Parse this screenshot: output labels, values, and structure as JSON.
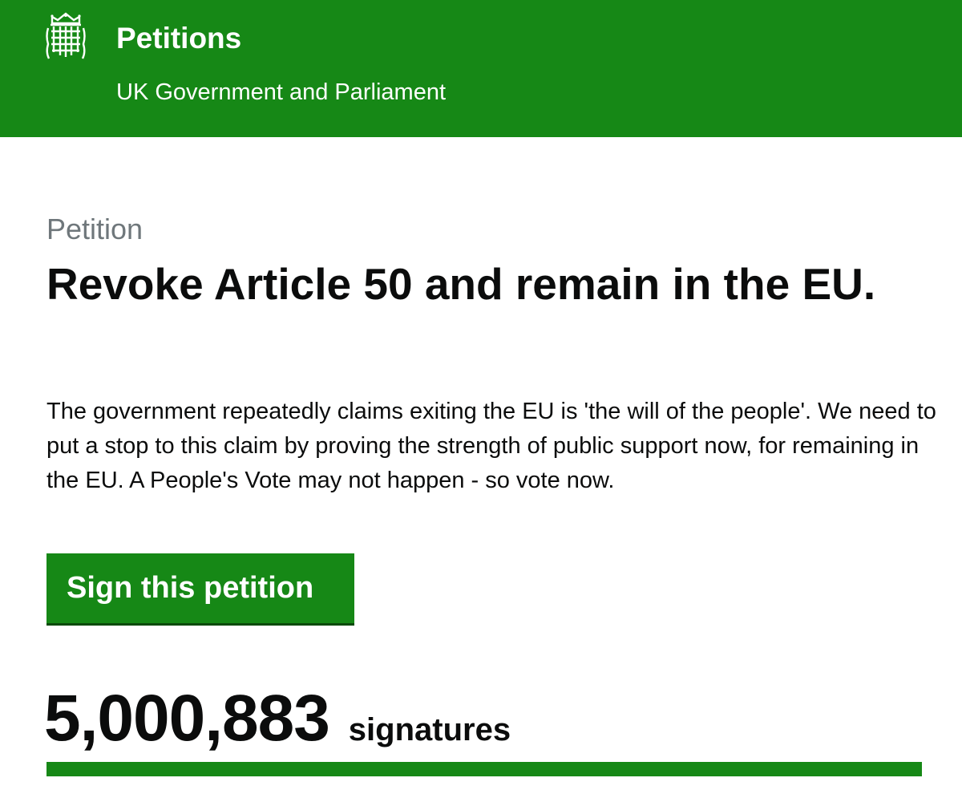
{
  "header": {
    "title": "Petitions",
    "subtitle": "UK Government and Parliament",
    "logo_icon": "portcullis-icon",
    "background_color": "#168816"
  },
  "petition": {
    "kicker": "Petition",
    "title": "Revoke Article 50 and remain in the EU.",
    "description": "The government repeatedly claims exiting the EU is 'the will of the people'. We need to put a stop to this claim by proving the strength of public support now, for remaining in the EU. A People's Vote may not happen - so vote now.",
    "sign_button_label": "Sign this petition",
    "signature_count": "5,000,883",
    "signature_label": "signatures",
    "progress_fraction": 1.0
  },
  "colors": {
    "accent": "#168816",
    "text": "#0b0c0c",
    "secondary_text": "#6f777b"
  }
}
